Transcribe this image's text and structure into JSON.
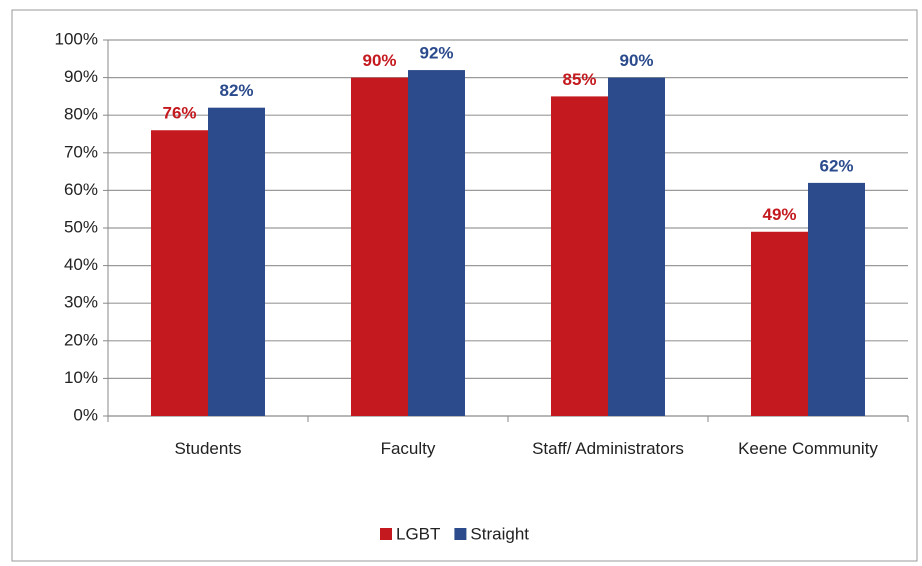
{
  "chart_data": {
    "type": "bar",
    "categories": [
      "Students",
      "Faculty",
      "Staff/ Administrators",
      "Keene Community"
    ],
    "series": [
      {
        "name": "LGBT",
        "color": "#c41a1f",
        "values": [
          76,
          90,
          85,
          49
        ],
        "value_labels": [
          "76%",
          "90%",
          "85%",
          "49%"
        ]
      },
      {
        "name": "Straight",
        "color": "#2b4b8c",
        "values": [
          82,
          92,
          90,
          62
        ],
        "value_labels": [
          "82%",
          "92%",
          "90%",
          "62%"
        ]
      }
    ],
    "ylim": [
      0,
      100
    ],
    "yticks": [
      {
        "value": 0,
        "label": "0%"
      },
      {
        "value": 10,
        "label": "10%"
      },
      {
        "value": 20,
        "label": "20%"
      },
      {
        "value": 30,
        "label": "30%"
      },
      {
        "value": 40,
        "label": "40%"
      },
      {
        "value": 50,
        "label": "50%"
      },
      {
        "value": 60,
        "label": "60%"
      },
      {
        "value": 70,
        "label": "70%"
      },
      {
        "value": 80,
        "label": "80%"
      },
      {
        "value": 90,
        "label": "90%"
      },
      {
        "value": 100,
        "label": "100%"
      }
    ],
    "grid": true,
    "legend": "bottom"
  }
}
